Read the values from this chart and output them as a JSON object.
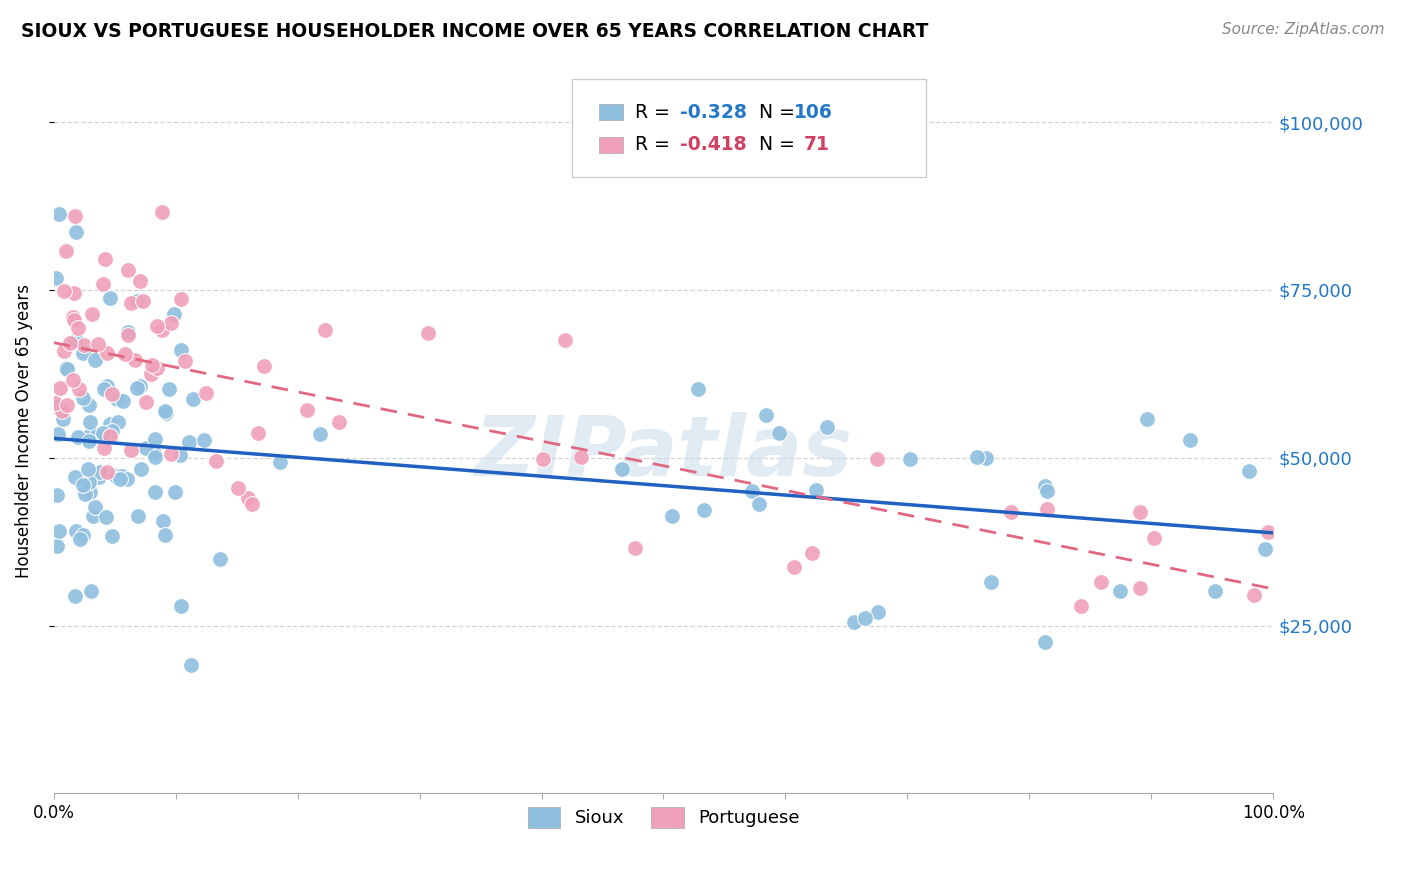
{
  "title": "SIOUX VS PORTUGUESE HOUSEHOLDER INCOME OVER 65 YEARS CORRELATION CHART",
  "source": "Source: ZipAtlas.com",
  "ylabel": "Householder Income Over 65 years",
  "ytick_values": [
    25000,
    50000,
    75000,
    100000
  ],
  "ymin": 0,
  "ymax": 108000,
  "xmin": 0.0,
  "xmax": 1.0,
  "sioux_color": "#8fbfdf",
  "portuguese_color": "#f0a0b8",
  "sioux_line_color": "#2060c0",
  "portuguese_line_color": "#e06880",
  "sioux_marker_color": "#7ab0dd",
  "portuguese_marker_color": "#f090a8",
  "background_color": "#ffffff",
  "grid_color": "#d0d0d0",
  "ytick_color": "#2478c8",
  "watermark_color": "#d8e8f0",
  "sioux_intercept": 55000,
  "sioux_slope": -18000,
  "portuguese_intercept": 68000,
  "portuguese_slope": -35000,
  "sioux_noise": 11000,
  "portuguese_noise": 9500,
  "seed": 7
}
